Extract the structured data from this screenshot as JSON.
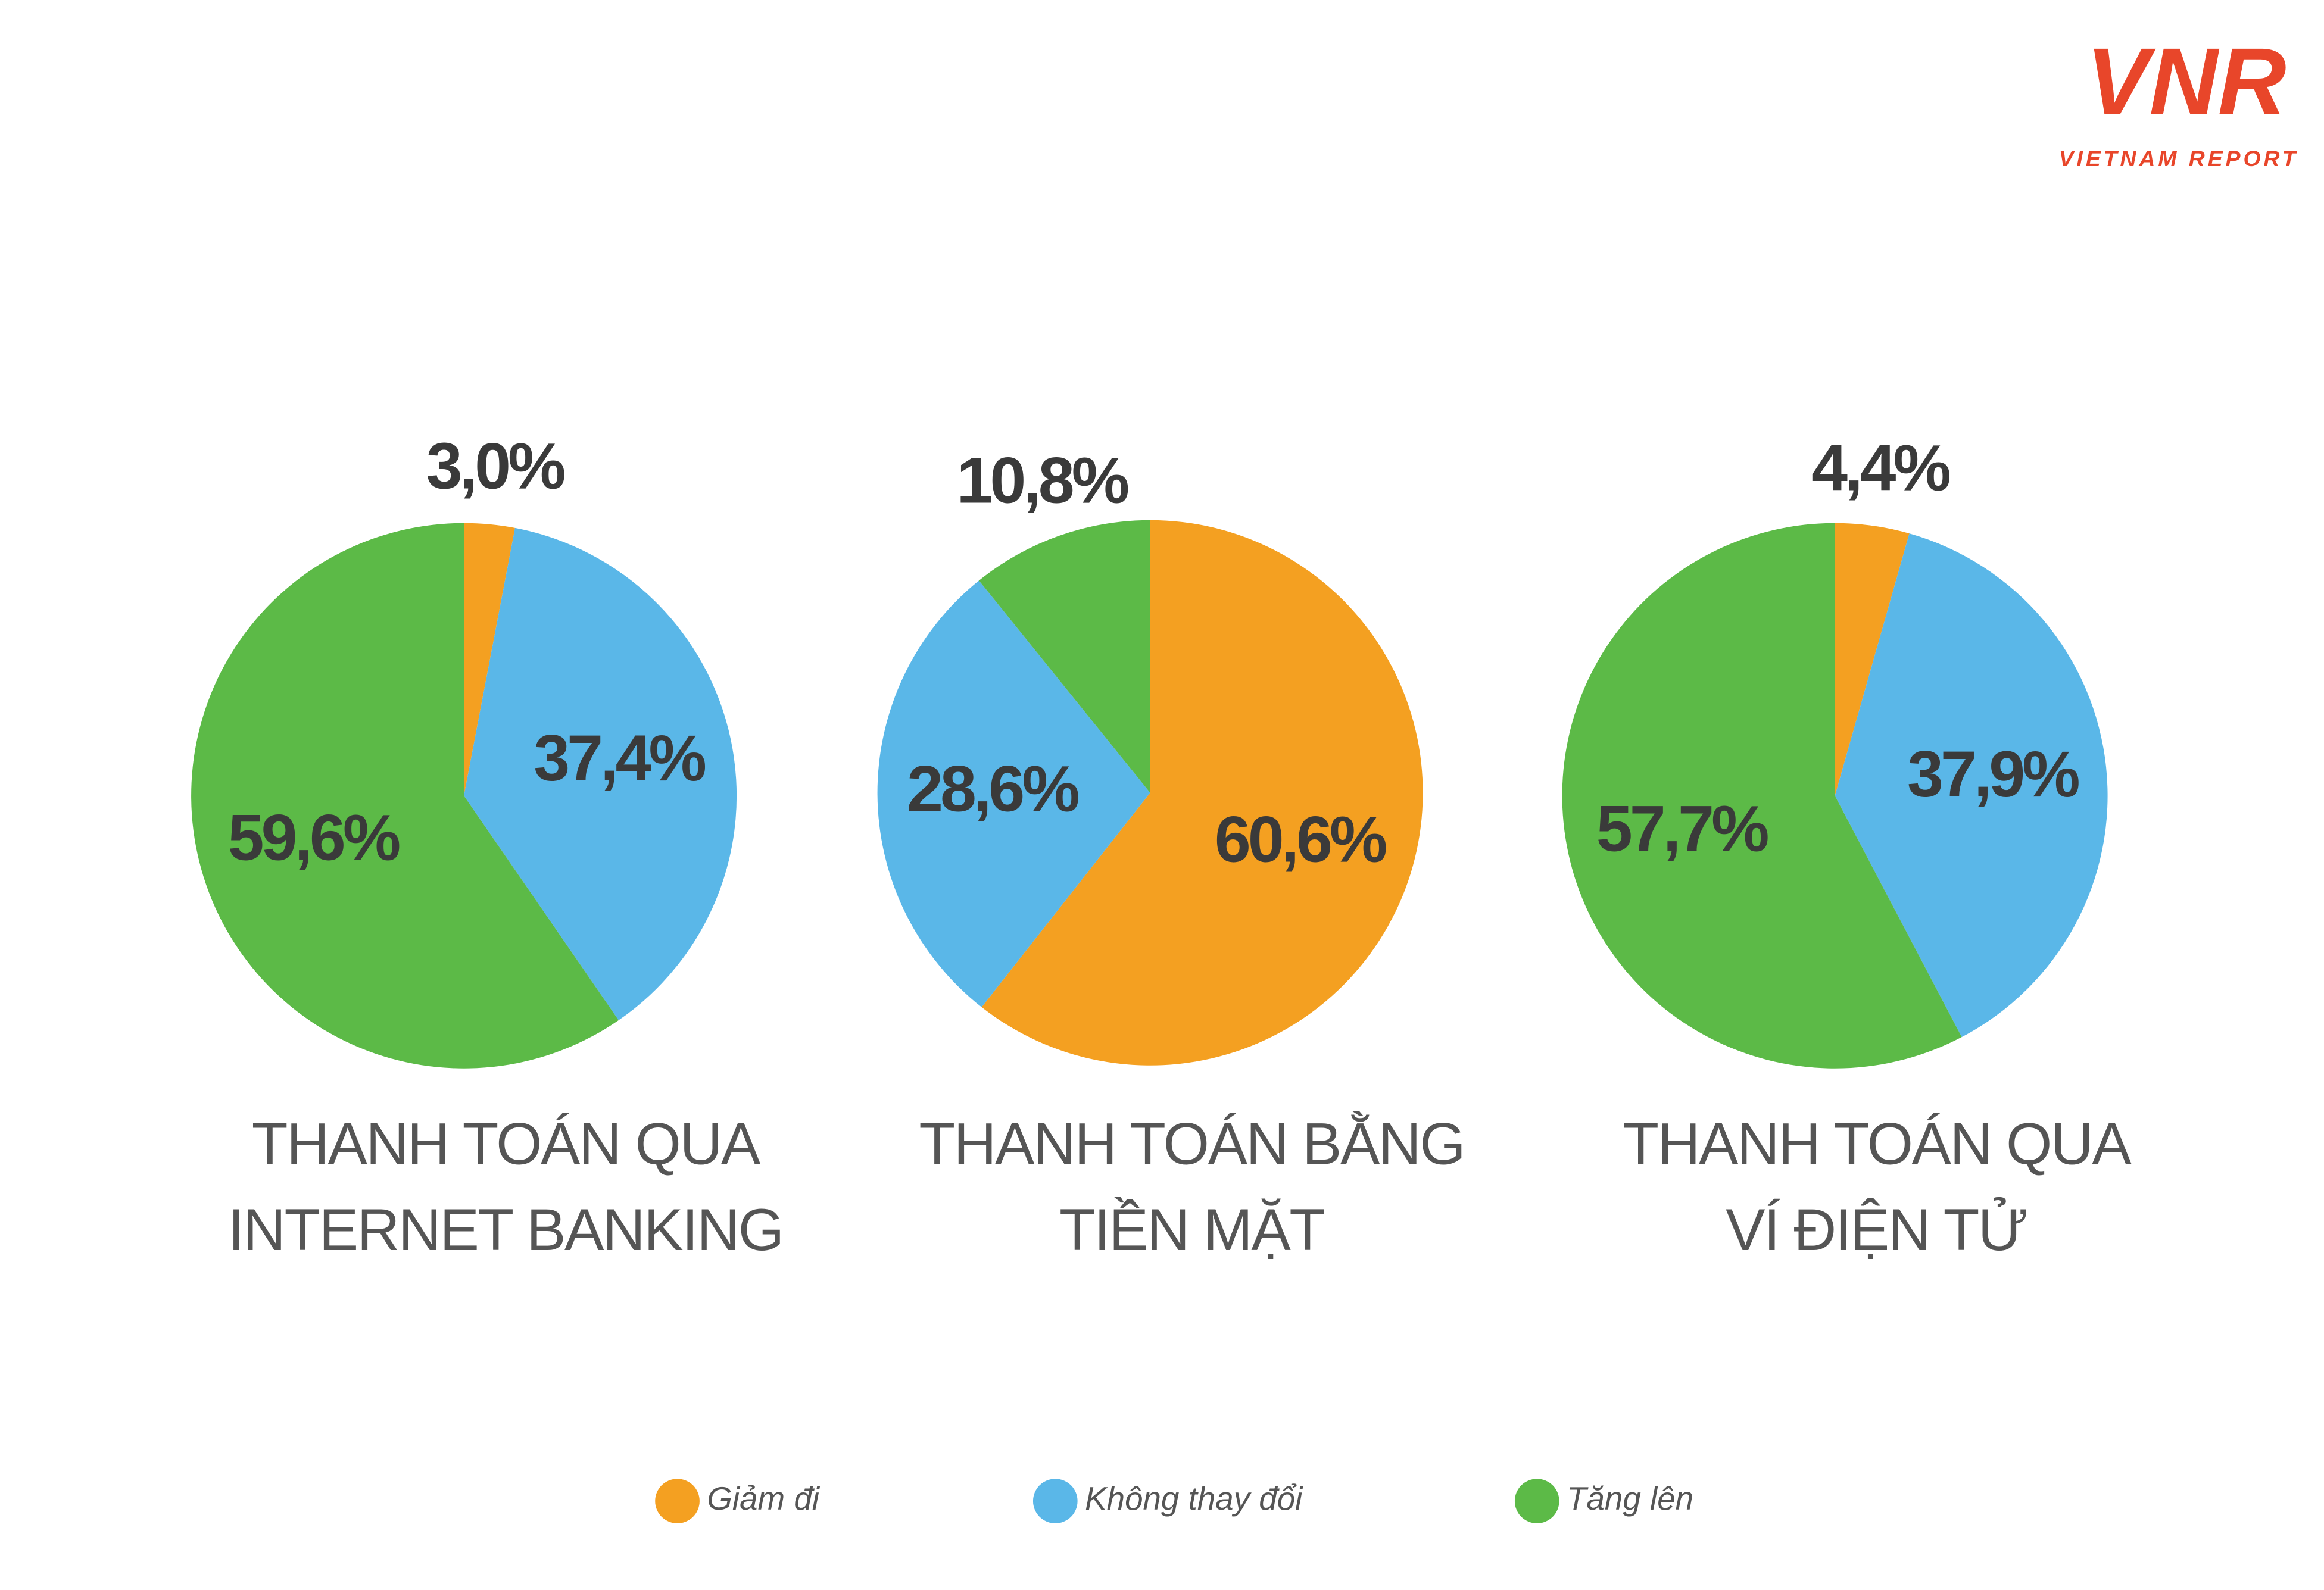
{
  "logo": {
    "mark": "VNR",
    "text": "VIETNAM REPORT"
  },
  "chart_data": [
    {
      "type": "pie",
      "title": [
        "THANH TOÁN QUA",
        "INTERNET BANKING"
      ],
      "categories": [
        "Giảm đi",
        "Không thay đổi",
        "Tăng lên"
      ],
      "colors": [
        "#f4a021",
        "#5ab7e8",
        "#5cba47"
      ],
      "values": [
        3.0,
        37.4,
        59.6
      ],
      "value_labels": [
        "3,0%",
        "37,4%",
        "59,6%"
      ]
    },
    {
      "type": "pie",
      "title": [
        "THANH TOÁN BẰNG",
        "TIỀN MẶT"
      ],
      "categories": [
        "Giảm đi",
        "Không thay đổi",
        "Tăng lên"
      ],
      "colors": [
        "#f4a021",
        "#5ab7e8",
        "#5cba47"
      ],
      "values": [
        60.6,
        28.6,
        10.8
      ],
      "value_labels": [
        "60,6%",
        "28,6%",
        "10,8%"
      ]
    },
    {
      "type": "pie",
      "title": [
        "THANH TOÁN QUA",
        "VÍ ĐIỆN TỬ"
      ],
      "categories": [
        "Giảm đi",
        "Không thay đổi",
        "Tăng lên"
      ],
      "colors": [
        "#f4a021",
        "#5ab7e8",
        "#5cba47"
      ],
      "values": [
        4.4,
        37.9,
        57.7
      ],
      "value_labels": [
        "4,4%",
        "37,9%",
        "57,7%"
      ]
    }
  ]
}
